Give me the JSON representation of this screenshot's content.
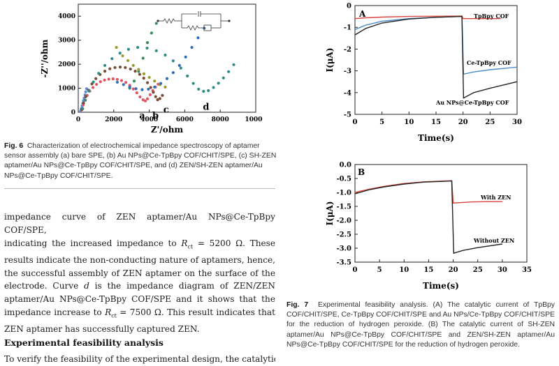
{
  "fig6": {
    "caption_label": "Fig. 6",
    "caption_text": "Characterization of electrochemical impedance spectroscopy of aptamer sensor assembly (a) bare SPE, (b) Au NPs@Ce-TpBpy COF/CHIT/SPE, (c) SH-ZEN aptamer/Au NPs@Ce-TpBpy COF/CHIT/SPE, and (d) ZEN/SH-ZEN aptamer/Au NPs@Ce-TpBpy COF/CHIT/SPE."
  },
  "fig7": {
    "caption_label": "Fig. 7",
    "caption_text": "Experimental feasibility analysis. (A) The catalytic current of TpBpy COF/CHIT/SPE, Ce-TpBpy COF/CHIT/SPE and Au NPs/Ce-TpBpy COF/CHIT/SPE for the reduction of hydrogen peroxide. (B) The catalytic current of SH-ZEN aptamer/Au NPs@Ce-TpBpy COF/CHIT/SPE and ZEN/SH-ZEN aptamer/Au NPs@Ce-TpBpy COF/CHIT/SPE for the reduction of hydrogen peroxide."
  },
  "body": {
    "paragraph": "impedance curve of ZEN aptamer/Au NPs@Ce-TpBpy COF/SPE, indicating the increased impedance to Rₑₜ = 5200 Ω. These results indicate the non-conducting nature of aptamers, hence, the successful assembly of ZEN aptamer on the surface of the electrode. Curve d is the impedance diagram of ZEN/ZEN aptamer/Au NPs@Ce-TpBpy COF/SPE and it shows that the impedance increase to Rₑₜ = 7500 Ω. This result indicates that ZEN aptamer has successfully captured ZEN.",
    "p_lines": [
      "impedance curve of ZEN aptamer/Au NPs@Ce-TpBpy COF/SPE,",
      "indicating the increased impedance to ",
      " = 5200 Ω. These",
      "results indicate the non-conducting nature of aptamers, hence,",
      "the successful assembly of ZEN aptamer on the surface of the",
      "electrode. Curve ",
      " is the impedance diagram of ZEN/ZEN",
      "aptamer/Au NPs@Ce-TpBpy COF/SPE and it shows that the",
      "impedance increase to ",
      " = 7500 Ω. This result indicates that",
      "ZEN aptamer has successfully captured ZEN."
    ],
    "r_symbol": "R",
    "r_sub": "ct",
    "curve_d": "d",
    "heading": "Experimental feasibility analysis",
    "next_line": "To verify the feasibility of the experimental design, the catalytic"
  },
  "chart_data": [
    {
      "id": "fig6",
      "type": "scatter",
      "xlabel": "Z'/ohm",
      "ylabel": "-Z''/ohm",
      "xlim": [
        0,
        10000
      ],
      "ylim": [
        0,
        4500
      ],
      "x_ticks": [
        "0",
        "2000",
        "4000",
        "6000",
        "8000",
        "10000"
      ],
      "y_ticks": [
        "0",
        "1000",
        "2000",
        "3000",
        "4000"
      ],
      "curve_labels": [
        "a",
        "b",
        "c",
        "d"
      ],
      "series": [
        {
          "label": "a",
          "color": "#5b8fd1",
          "points": [
            [
              130,
              60
            ],
            [
              170,
              150
            ],
            [
              210,
              260
            ],
            [
              250,
              370
            ],
            [
              290,
              480
            ],
            [
              330,
              590
            ],
            [
              380,
              720
            ],
            [
              420,
              850
            ],
            [
              470,
              980
            ]
          ]
        },
        {
          "label": "b",
          "color": "#e05564",
          "points": [
            [
              200,
              100
            ],
            [
              280,
              300
            ],
            [
              380,
              500
            ],
            [
              500,
              700
            ],
            [
              650,
              880
            ],
            [
              830,
              1030
            ],
            [
              1030,
              1160
            ],
            [
              1250,
              1270
            ],
            [
              1480,
              1340
            ],
            [
              1720,
              1380
            ],
            [
              1960,
              1390
            ],
            [
              2200,
              1370
            ],
            [
              2440,
              1320
            ],
            [
              2680,
              1240
            ],
            [
              2900,
              1120
            ],
            [
              3100,
              970
            ],
            [
              3300,
              810
            ],
            [
              3480,
              640
            ],
            [
              3650,
              520
            ],
            [
              3780,
              470
            ],
            [
              3900,
              560
            ],
            [
              4050,
              730
            ],
            [
              4200,
              900
            ],
            [
              4350,
              1050
            ],
            [
              4500,
              1170
            ]
          ]
        },
        {
          "label": "c",
          "color": "#7a4b35",
          "points": [
            [
              200,
              120
            ],
            [
              300,
              380
            ],
            [
              420,
              650
            ],
            [
              580,
              920
            ],
            [
              770,
              1180
            ],
            [
              990,
              1400
            ],
            [
              1230,
              1570
            ],
            [
              1500,
              1710
            ],
            [
              1780,
              1810
            ],
            [
              2070,
              1860
            ],
            [
              2360,
              1880
            ],
            [
              2650,
              1860
            ],
            [
              2940,
              1800
            ],
            [
              3210,
              1710
            ],
            [
              3460,
              1580
            ],
            [
              3690,
              1420
            ],
            [
              3900,
              1230
            ],
            [
              4080,
              1030
            ],
            [
              4230,
              830
            ],
            [
              4360,
              650
            ],
            [
              4470,
              520
            ],
            [
              4600,
              570
            ],
            [
              4740,
              700
            ]
          ]
        },
        {
          "label": "d",
          "color": "#2e8c85",
          "points": [
            [
              250,
              150
            ],
            [
              400,
              500
            ],
            [
              600,
              880
            ],
            [
              850,
              1260
            ],
            [
              1150,
              1620
            ],
            [
              1500,
              1950
            ],
            [
              1900,
              2230
            ],
            [
              2350,
              2460
            ],
            [
              2830,
              2620
            ],
            [
              3350,
              2700
            ],
            [
              3880,
              2670
            ],
            [
              4400,
              2560
            ],
            [
              4900,
              2380
            ],
            [
              5350,
              2140
            ],
            [
              5780,
              1840
            ],
            [
              6150,
              1510
            ],
            [
              6480,
              1200
            ],
            [
              6780,
              960
            ],
            [
              7060,
              870
            ],
            [
              7330,
              900
            ],
            [
              7620,
              1030
            ],
            [
              7900,
              1210
            ],
            [
              8180,
              1430
            ],
            [
              8470,
              1690
            ],
            [
              8760,
              1980
            ]
          ]
        },
        {
          "label": "",
          "color": "#3a8c5a",
          "points": [
            [
              2900,
              1000
            ],
            [
              3150,
              1300
            ],
            [
              3400,
              1700
            ],
            [
              3650,
              2250
            ],
            [
              3900,
              2900
            ],
            [
              4130,
              3300
            ],
            [
              4400,
              3700
            ]
          ]
        },
        {
          "label": "",
          "color": "#9a9a2a",
          "points": [
            [
              2150,
              2700
            ],
            [
              2500,
              2350
            ],
            [
              2800,
              2150
            ],
            [
              3100,
              1950
            ],
            [
              3400,
              1780
            ],
            [
              3700,
              1600
            ],
            [
              4000,
              1450
            ],
            [
              4300,
              1300
            ],
            [
              4600,
              1150
            ],
            [
              4900,
              1050
            ]
          ]
        },
        {
          "label": "",
          "color": "#2e6fb7",
          "points": [
            [
              2200,
              1250
            ],
            [
              2550,
              1150
            ],
            [
              2900,
              1050
            ],
            [
              3250,
              980
            ],
            [
              3600,
              940
            ],
            [
              3950,
              960
            ],
            [
              4300,
              1050
            ],
            [
              4650,
              1200
            ],
            [
              5000,
              1400
            ],
            [
              5350,
              1650
            ],
            [
              5700,
              1950
            ],
            [
              6050,
              2300
            ],
            [
              6400,
              2700
            ],
            [
              6750,
              3100
            ],
            [
              7100,
              3500
            ]
          ]
        }
      ]
    },
    {
      "id": "fig7A",
      "type": "line",
      "panel_label": "A",
      "xlabel": "Time(s)",
      "ylabel": "I(μA)",
      "xlim": [
        0,
        30
      ],
      "ylim": [
        -5,
        0
      ],
      "x_ticks": [
        "0",
        "5",
        "10",
        "15",
        "20",
        "25",
        "30"
      ],
      "y_ticks": [
        "0",
        "-1",
        "-2",
        "-3",
        "-4",
        "-5"
      ],
      "series": [
        {
          "name": "TpBpy COF",
          "color": "#d9463e",
          "points": [
            [
              0,
              -0.6
            ],
            [
              2,
              -0.56
            ],
            [
              5,
              -0.53
            ],
            [
              10,
              -0.5
            ],
            [
              15,
              -0.49
            ],
            [
              19.8,
              -0.48
            ],
            [
              20,
              -0.6
            ],
            [
              25,
              -0.6
            ],
            [
              27,
              -0.6
            ]
          ]
        },
        {
          "name": "Ce-TpBpy COF",
          "color": "#4a8cc8",
          "points": [
            [
              0,
              -1.1
            ],
            [
              2,
              -0.9
            ],
            [
              5,
              -0.72
            ],
            [
              10,
              -0.6
            ],
            [
              15,
              -0.54
            ],
            [
              19.8,
              -0.5
            ],
            [
              20.1,
              -3.15
            ],
            [
              22,
              -3.05
            ],
            [
              25,
              -2.95
            ],
            [
              30,
              -2.83
            ]
          ]
        },
        {
          "name": "Au NPs@Ce-TpBpy COF",
          "color": "#222222",
          "points": [
            [
              0,
              -1.35
            ],
            [
              2,
              -1.05
            ],
            [
              5,
              -0.8
            ],
            [
              10,
              -0.62
            ],
            [
              15,
              -0.54
            ],
            [
              19.8,
              -0.5
            ],
            [
              20.1,
              -4.25
            ],
            [
              22,
              -4.0
            ],
            [
              25,
              -3.8
            ],
            [
              30,
              -3.5
            ]
          ]
        }
      ]
    },
    {
      "id": "fig7B",
      "type": "line",
      "panel_label": "B",
      "xlabel": "Time(s)",
      "ylabel": "I(μA)",
      "xlim": [
        0,
        35
      ],
      "ylim": [
        -3.5,
        0
      ],
      "x_ticks": [
        "0",
        "5",
        "10",
        "15",
        "20",
        "25",
        "30",
        "35"
      ],
      "y_ticks": [
        "0.0",
        "-0.5",
        "-1.0",
        "-1.5",
        "-2.0",
        "-2.5",
        "-3.0",
        "-3.5"
      ],
      "series": [
        {
          "name": "With ZEN",
          "color": "#d9463e",
          "points": [
            [
              0,
              -1.0
            ],
            [
              3,
              -0.88
            ],
            [
              6,
              -0.78
            ],
            [
              10,
              -0.68
            ],
            [
              14,
              -0.62
            ],
            [
              19.7,
              -0.58
            ],
            [
              20,
              -1.38
            ],
            [
              24,
              -1.34
            ],
            [
              28,
              -1.33
            ],
            [
              30,
              -1.33
            ]
          ]
        },
        {
          "name": "Without ZEN",
          "color": "#222222",
          "points": [
            [
              0,
              -1.05
            ],
            [
              3,
              -0.9
            ],
            [
              6,
              -0.8
            ],
            [
              10,
              -0.7
            ],
            [
              14,
              -0.63
            ],
            [
              19.7,
              -0.59
            ],
            [
              20.1,
              -3.18
            ],
            [
              22,
              -3.08
            ],
            [
              25,
              -2.98
            ],
            [
              30,
              -2.85
            ]
          ]
        }
      ]
    }
  ]
}
